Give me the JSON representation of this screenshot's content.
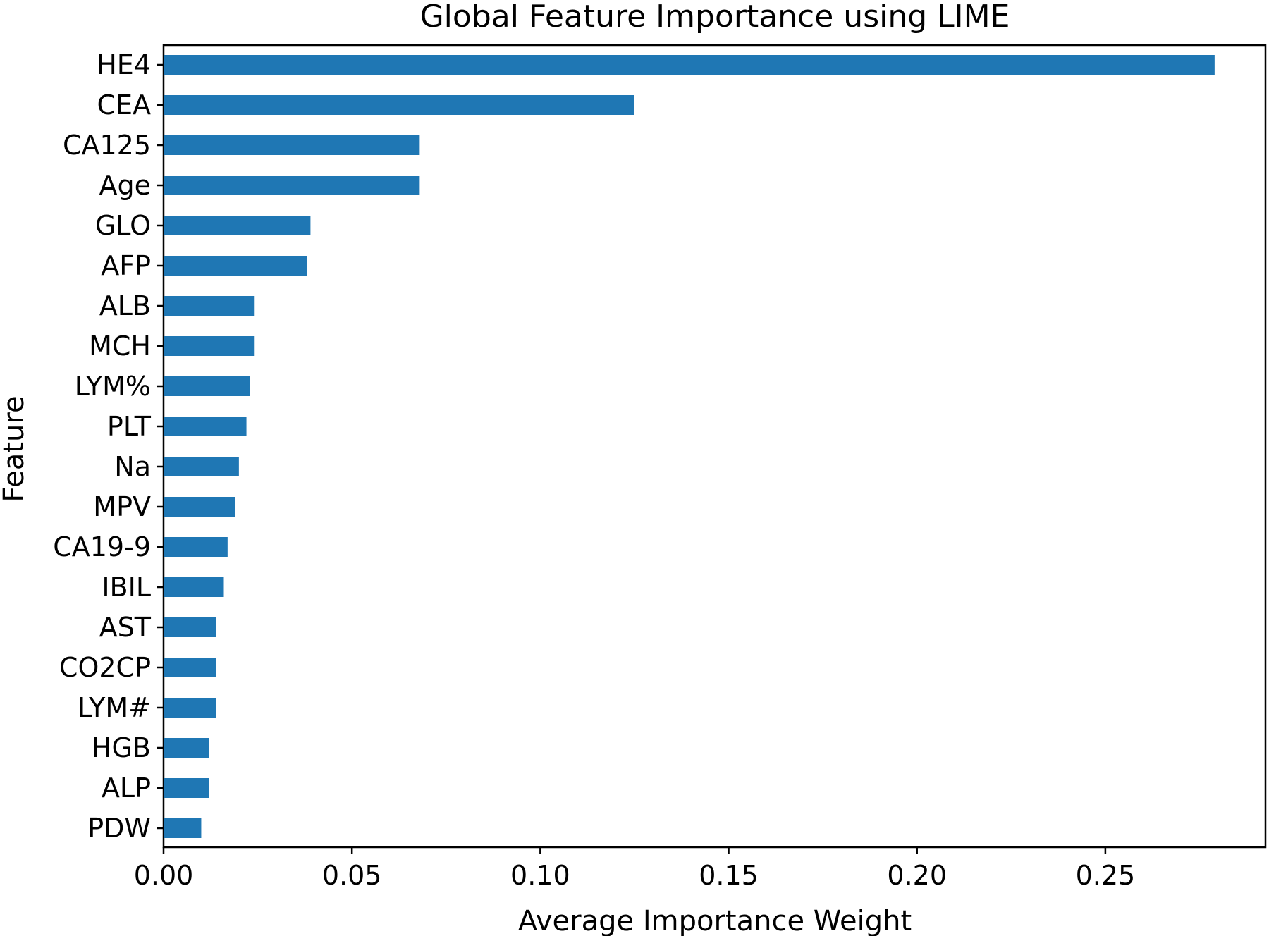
{
  "chart_data": {
    "type": "bar",
    "orientation": "horizontal",
    "title": "Global Feature Importance using LIME",
    "xlabel": "Average Importance Weight",
    "ylabel": "Feature",
    "xlim": [
      0,
      0.2925
    ],
    "xticks": [
      0.0,
      0.05,
      0.1,
      0.15,
      0.2,
      0.25
    ],
    "xtick_labels": [
      "0.00",
      "0.05",
      "0.10",
      "0.15",
      "0.20",
      "0.25"
    ],
    "grid": false,
    "legend": "none",
    "bar_color": "#1f77b4",
    "categories": [
      "HE4",
      "CEA",
      "CA125",
      "Age",
      "GLO",
      "AFP",
      "ALB",
      "MCH",
      "LYM%",
      "PLT",
      "Na",
      "MPV",
      "CA19-9",
      "IBIL",
      "AST",
      "CO2CP",
      "LYM#",
      "HGB",
      "ALP",
      "PDW"
    ],
    "values": [
      0.279,
      0.125,
      0.068,
      0.068,
      0.039,
      0.038,
      0.024,
      0.024,
      0.023,
      0.022,
      0.02,
      0.019,
      0.017,
      0.016,
      0.014,
      0.014,
      0.014,
      0.012,
      0.012,
      0.01
    ]
  }
}
